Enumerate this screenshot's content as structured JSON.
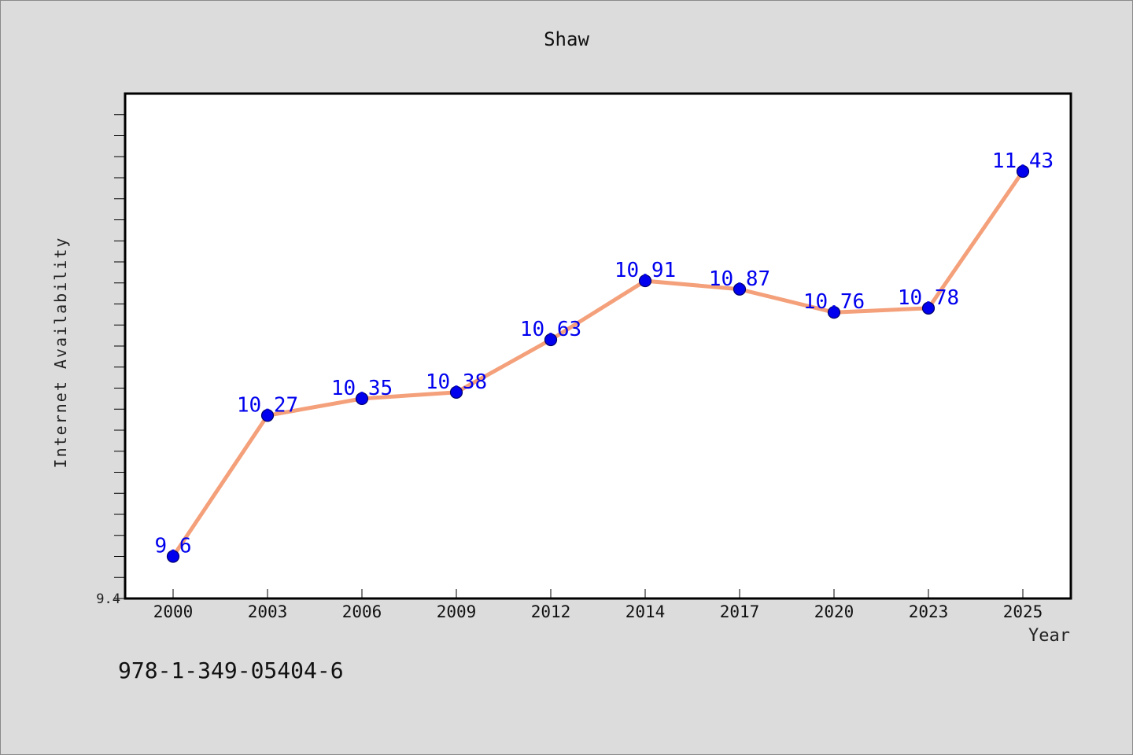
{
  "chart_data": {
    "type": "line",
    "title": "Shaw",
    "xlabel": "Year",
    "ylabel": "Internet Availability",
    "categories": [
      "2000",
      "2003",
      "2006",
      "2009",
      "2012",
      "2014",
      "2017",
      "2020",
      "2023",
      "2025"
    ],
    "values": [
      9.6,
      10.27,
      10.35,
      10.38,
      10.63,
      10.91,
      10.87,
      10.76,
      10.78,
      11.43
    ],
    "data_labels": [
      "9.6",
      "10.27",
      "10.35",
      "10.38",
      "10.63",
      "10.91",
      "10.87",
      "10.76",
      "10.78",
      "11.43"
    ],
    "ytick_labels": [
      "9.4"
    ],
    "ylim": [
      9.4,
      11.8
    ],
    "grid": false,
    "colors": {
      "line": "#f4a07a",
      "marker": "#0000ee",
      "label": "#0000ee"
    }
  },
  "footer": {
    "isbn": "978-1-349-05404-6"
  }
}
